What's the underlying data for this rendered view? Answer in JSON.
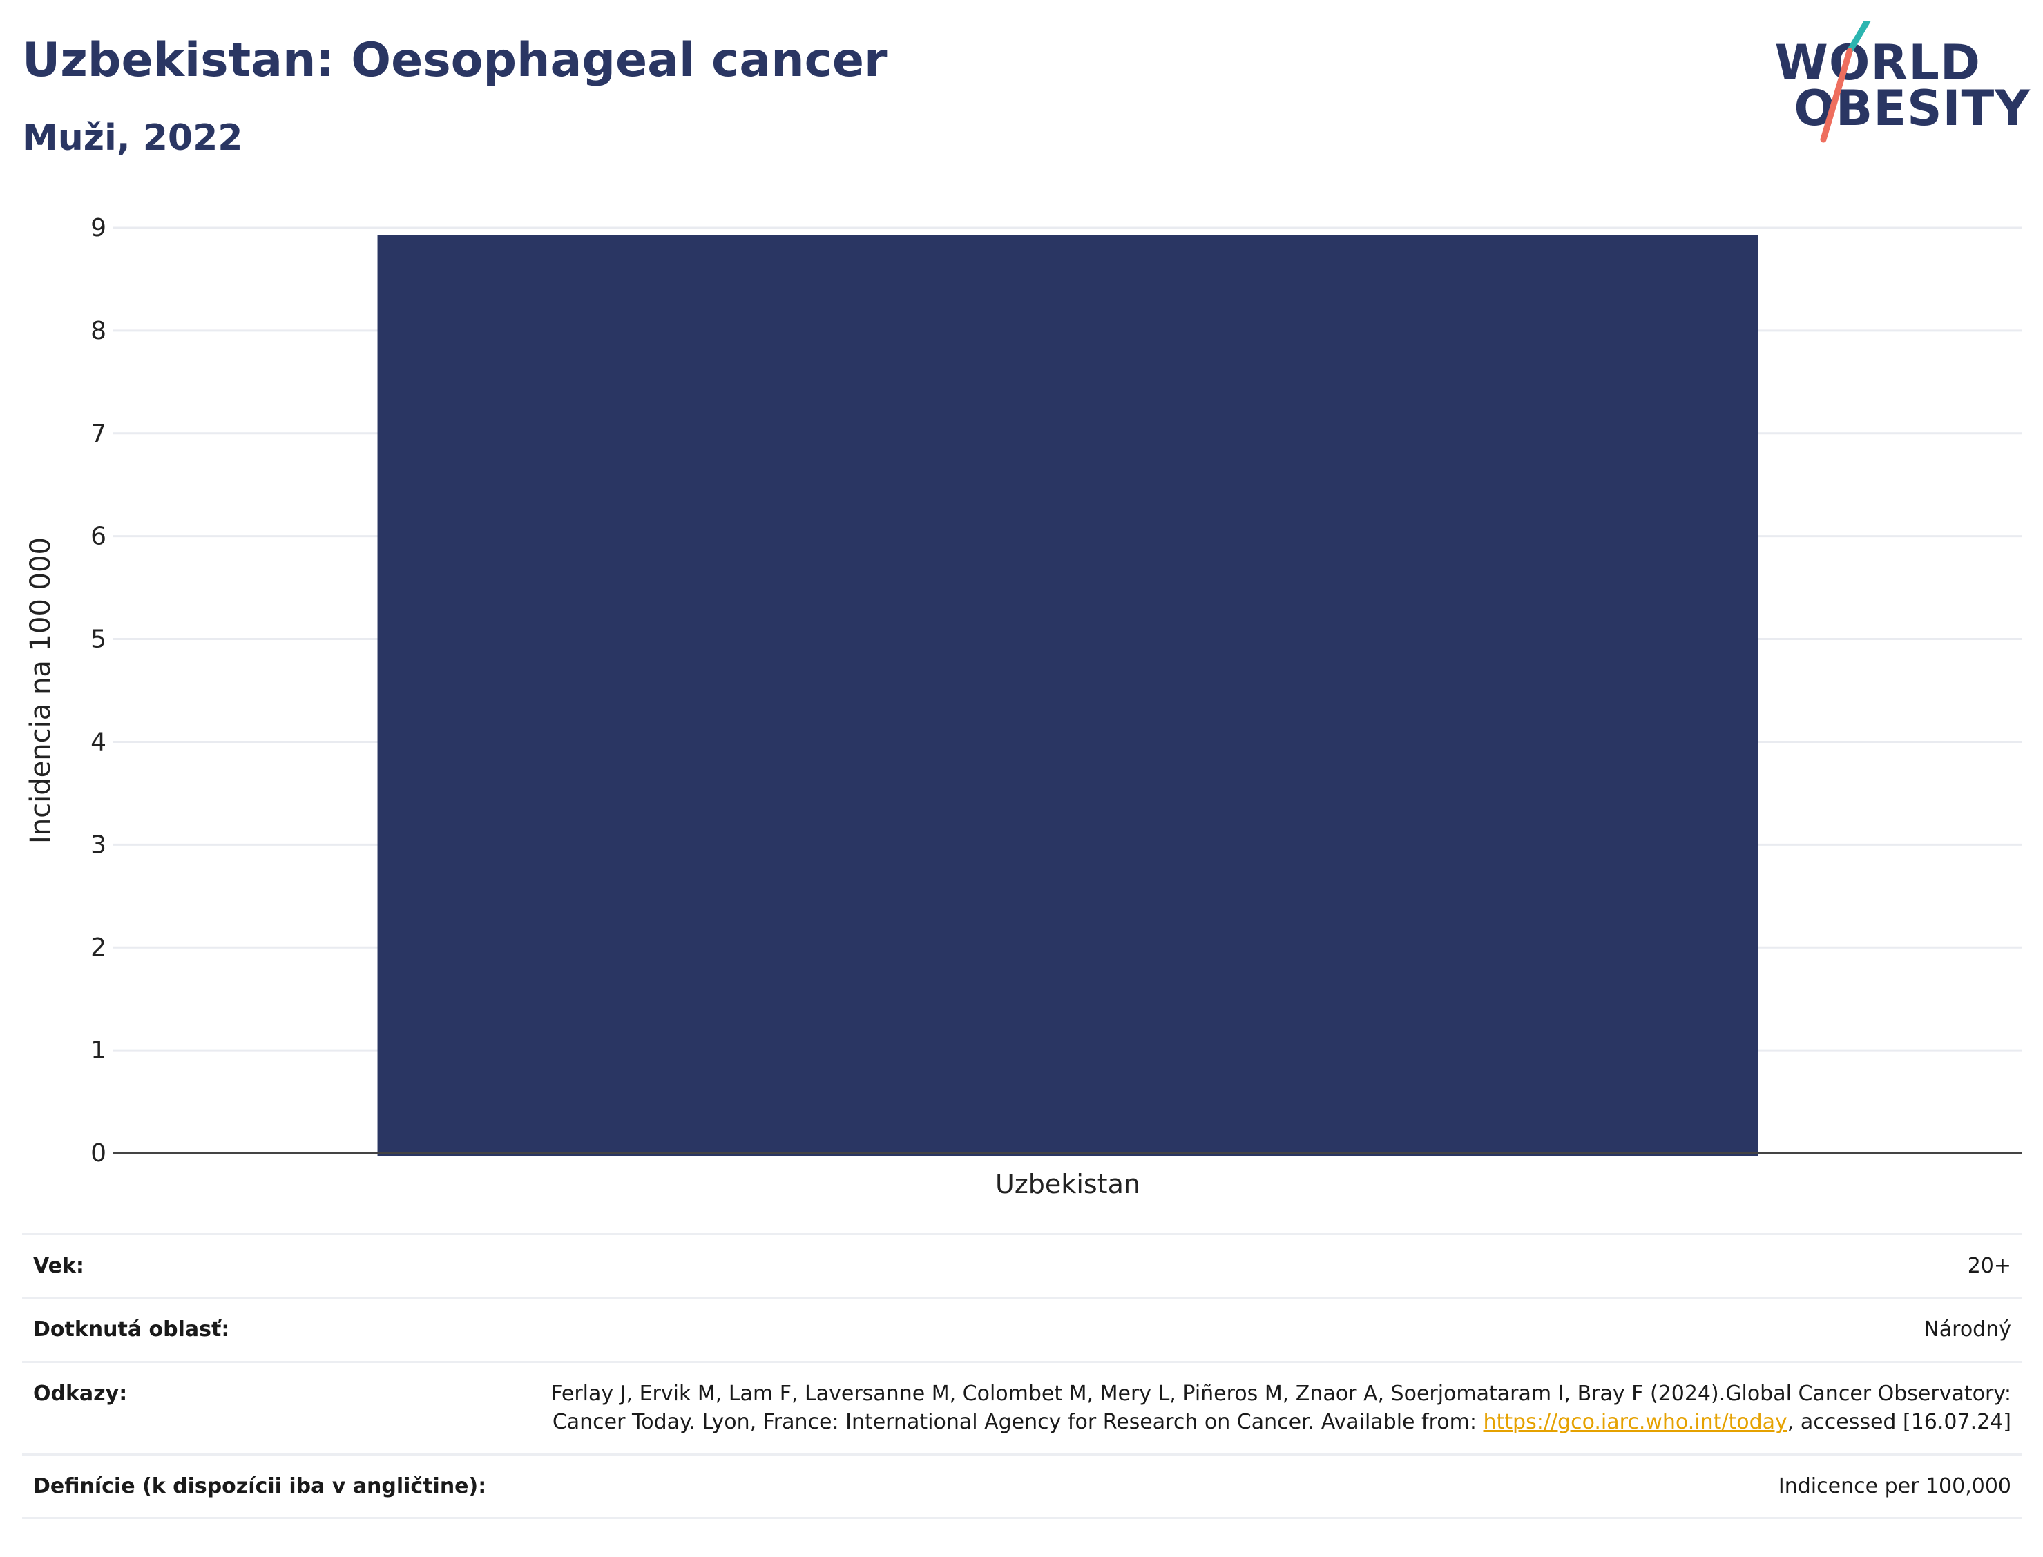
{
  "header": {
    "title": "Uzbekistan: Oesophageal cancer",
    "subtitle": "Muži, 2022"
  },
  "logo": {
    "line1": "WORLD",
    "line2": "OBESITY",
    "slash_colors": [
      "#2bb5b0",
      "#ee6e5e"
    ]
  },
  "chart_data": {
    "type": "bar",
    "categories": [
      "Uzbekistan"
    ],
    "series": [
      {
        "values": [
          8.93
        ],
        "color": "#2a3663"
      }
    ],
    "xlabel": "",
    "ylabel": "Incidencia na 100 000",
    "ylim": [
      0,
      9
    ],
    "yticks": [
      0,
      1,
      2,
      3,
      4,
      5,
      6,
      7,
      8,
      9
    ],
    "grid": true
  },
  "info": {
    "rows": [
      {
        "key": "Vek:",
        "value": "20+"
      },
      {
        "key": "Dotknutá oblasť:",
        "value": "Národný"
      },
      {
        "key": "Odkazy:",
        "value_before": "Ferlay J, Ervik M, Lam F, Laversanne M, Colombet M, Mery L, Piñeros M, Znaor A, Soerjomataram I, Bray F (2024).Global Cancer Observatory: Cancer Today. Lyon, France: International Agency for Research on Cancer. Available from: ",
        "link": "https://gco.iarc.who.int/today",
        "value_after": ", accessed [16.07.24]"
      },
      {
        "key": "Definície (k dispozícii iba v angličtine):",
        "value": "Indicence per 100,000"
      }
    ]
  }
}
